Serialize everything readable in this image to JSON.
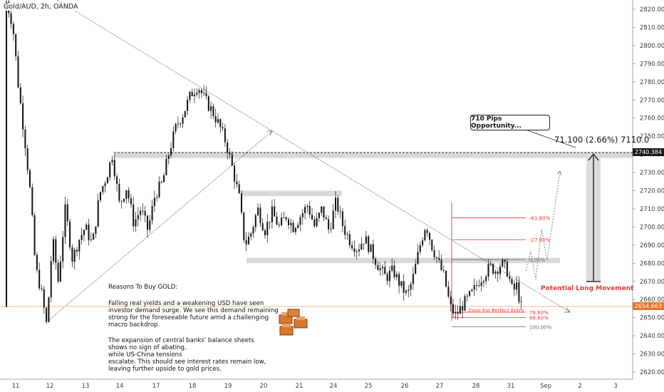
{
  "header": {
    "symbol": "Gold/AUD, 2h, OANDA"
  },
  "chart_data": {
    "type": "candlestick",
    "y_axis_labels": [
      2820,
      2810,
      2800,
      2790,
      2780,
      2770,
      2760,
      2750,
      2740,
      2730,
      2720,
      2710,
      2700,
      2690,
      2680,
      2670,
      2660,
      2650,
      2640,
      2630,
      2620
    ],
    "ylim": [
      2616,
      2826
    ],
    "x_axis_labels": [
      "11",
      "12",
      "13",
      "14",
      "17",
      "18",
      "19",
      "20",
      "21",
      "24",
      "25",
      "26",
      "27",
      "28",
      "31",
      "Sep",
      "2",
      "3"
    ],
    "price_tags": {
      "target": "2740.384",
      "current": "2654.663"
    },
    "anchors": [
      {
        "x": 10,
        "y": 2826
      },
      {
        "x": 20,
        "y": 2812
      },
      {
        "x": 28,
        "y": 2778
      },
      {
        "x": 38,
        "y": 2745
      },
      {
        "x": 45,
        "y": 2718
      },
      {
        "x": 52,
        "y": 2678
      },
      {
        "x": 60,
        "y": 2665
      },
      {
        "x": 68,
        "y": 2645
      },
      {
        "x": 76,
        "y": 2694
      },
      {
        "x": 84,
        "y": 2670
      },
      {
        "x": 94,
        "y": 2710
      },
      {
        "x": 104,
        "y": 2682
      },
      {
        "x": 112,
        "y": 2692
      },
      {
        "x": 122,
        "y": 2700
      },
      {
        "x": 132,
        "y": 2690
      },
      {
        "x": 142,
        "y": 2718
      },
      {
        "x": 152,
        "y": 2728
      },
      {
        "x": 160,
        "y": 2740
      },
      {
        "x": 170,
        "y": 2712
      },
      {
        "x": 180,
        "y": 2722
      },
      {
        "x": 190,
        "y": 2702
      },
      {
        "x": 200,
        "y": 2710
      },
      {
        "x": 210,
        "y": 2698
      },
      {
        "x": 220,
        "y": 2718
      },
      {
        "x": 230,
        "y": 2724
      },
      {
        "x": 240,
        "y": 2742
      },
      {
        "x": 250,
        "y": 2756
      },
      {
        "x": 260,
        "y": 2763
      },
      {
        "x": 270,
        "y": 2773
      },
      {
        "x": 280,
        "y": 2778
      },
      {
        "x": 290,
        "y": 2770
      },
      {
        "x": 300,
        "y": 2764
      },
      {
        "x": 310,
        "y": 2756
      },
      {
        "x": 320,
        "y": 2746
      },
      {
        "x": 330,
        "y": 2730
      },
      {
        "x": 338,
        "y": 2716
      },
      {
        "x": 346,
        "y": 2690
      },
      {
        "x": 354,
        "y": 2696
      },
      {
        "x": 364,
        "y": 2710
      },
      {
        "x": 374,
        "y": 2698
      },
      {
        "x": 384,
        "y": 2708
      },
      {
        "x": 394,
        "y": 2700
      },
      {
        "x": 404,
        "y": 2706
      },
      {
        "x": 414,
        "y": 2700
      },
      {
        "x": 424,
        "y": 2706
      },
      {
        "x": 434,
        "y": 2712
      },
      {
        "x": 444,
        "y": 2700
      },
      {
        "x": 454,
        "y": 2710
      },
      {
        "x": 464,
        "y": 2698
      },
      {
        "x": 474,
        "y": 2714
      },
      {
        "x": 484,
        "y": 2700
      },
      {
        "x": 494,
        "y": 2692
      },
      {
        "x": 504,
        "y": 2688
      },
      {
        "x": 514,
        "y": 2694
      },
      {
        "x": 524,
        "y": 2686
      },
      {
        "x": 534,
        "y": 2678
      },
      {
        "x": 544,
        "y": 2672
      },
      {
        "x": 554,
        "y": 2676
      },
      {
        "x": 564,
        "y": 2668
      },
      {
        "x": 574,
        "y": 2662
      },
      {
        "x": 582,
        "y": 2672
      },
      {
        "x": 592,
        "y": 2690
      },
      {
        "x": 600,
        "y": 2702
      },
      {
        "x": 608,
        "y": 2690
      },
      {
        "x": 616,
        "y": 2682
      },
      {
        "x": 626,
        "y": 2672
      },
      {
        "x": 634,
        "y": 2656
      },
      {
        "x": 642,
        "y": 2651
      },
      {
        "x": 650,
        "y": 2656
      },
      {
        "x": 658,
        "y": 2660
      },
      {
        "x": 666,
        "y": 2664
      },
      {
        "x": 674,
        "y": 2670
      },
      {
        "x": 682,
        "y": 2674
      },
      {
        "x": 690,
        "y": 2678
      },
      {
        "x": 698,
        "y": 2676
      },
      {
        "x": 706,
        "y": 2680
      },
      {
        "x": 714,
        "y": 2676
      },
      {
        "x": 722,
        "y": 2664
      },
      {
        "x": 728,
        "y": 2668
      },
      {
        "x": 733,
        "y": 2656
      }
    ],
    "fib_levels": [
      {
        "label": "-61.80%",
        "value": 2705
      },
      {
        "label": "-27.00%",
        "value": 2693
      },
      {
        "label": "0.00%",
        "value": 2682
      },
      {
        "label": "78.60%",
        "value": 2653
      },
      {
        "label": "88.60%",
        "value": 2650
      },
      {
        "label": "100.00%",
        "value": 2645
      }
    ],
    "zones": [
      {
        "from": 2738,
        "to": 2741
      },
      {
        "from": 2717,
        "to": 2720
      },
      {
        "from": 2680,
        "to": 2683
      }
    ]
  },
  "annotations": {
    "callout": "710 Pips Opportunity...",
    "measure": "71.100 (2.66%) 7110.0",
    "potential": "Potential Long Movement",
    "zone_label": "Zone For Perfect Entry",
    "note_title": "Reasons To Buy GOLD:",
    "note_p1": "Falling real yields and a weakening USD have seen\ninvestor demand surge. We see this demand remaining\nstrong for the foreseeable future amid a challenging\n macro backdrop.",
    "note_p2": "The expansion of central banks' balance sheets\n shows no sign of abating,\n while US-China tensions\nescalate. This should see interest rates remain low,\nleaving further upside to gold prices."
  },
  "colors": {
    "candle": "#111111",
    "fib": "#e53935",
    "zone": "#d9d9d9",
    "gold": "#d9772b",
    "tag_target": "#1a1a1a",
    "tag_current": "#e8732a"
  }
}
